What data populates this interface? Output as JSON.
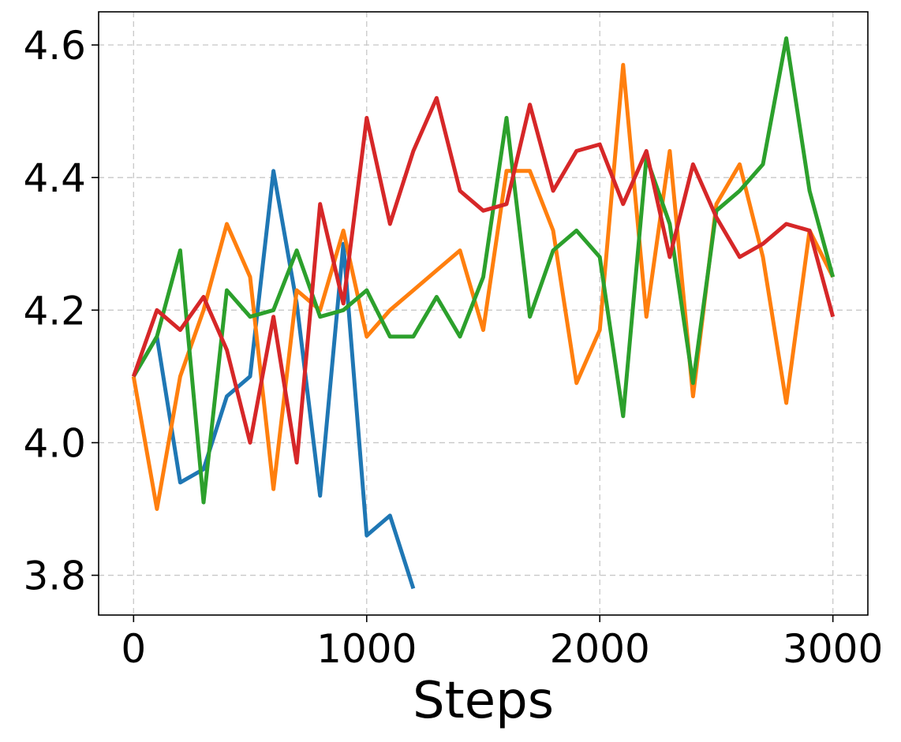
{
  "chart_data": {
    "type": "line",
    "xlabel": "Steps",
    "ylabel": "",
    "xlim": [
      -150,
      3150
    ],
    "ylim": [
      3.74,
      4.65
    ],
    "xticks": [
      0,
      1000,
      2000,
      3000
    ],
    "xtick_labels": [
      "0",
      "1000",
      "2000",
      "3000"
    ],
    "yticks": [
      3.8,
      4.0,
      4.2,
      4.4,
      4.6
    ],
    "ytick_labels": [
      "3.8",
      "4.0",
      "4.2",
      "4.4",
      "4.6"
    ],
    "grid": true,
    "legend": "none",
    "series": [
      {
        "color": "#1f77b4",
        "x": [
          0,
          100,
          200,
          300,
          400,
          500,
          600,
          700,
          800,
          900,
          1000,
          1100,
          1200
        ],
        "y": [
          4.1,
          4.16,
          3.94,
          3.96,
          4.07,
          4.1,
          4.41,
          4.21,
          3.92,
          4.3,
          3.86,
          3.89,
          3.78
        ]
      },
      {
        "color": "#ff7f0e",
        "x": [
          0,
          100,
          200,
          300,
          400,
          500,
          600,
          700,
          800,
          900,
          1000,
          1100,
          1200,
          1300,
          1400,
          1500,
          1600,
          1700,
          1800,
          1900,
          2000,
          2100,
          2200,
          2300,
          2400,
          2500,
          2600,
          2700,
          2800,
          2900,
          3000
        ],
        "y": [
          4.1,
          3.9,
          4.1,
          4.2,
          4.33,
          4.25,
          3.93,
          4.23,
          4.2,
          4.32,
          4.16,
          4.2,
          4.23,
          4.26,
          4.29,
          4.17,
          4.41,
          4.41,
          4.32,
          4.09,
          4.17,
          4.57,
          4.19,
          4.44,
          4.07,
          4.36,
          4.42,
          4.28,
          4.06,
          4.32,
          4.25
        ]
      },
      {
        "color": "#2ca02c",
        "x": [
          0,
          100,
          200,
          300,
          400,
          500,
          600,
          700,
          800,
          900,
          1000,
          1100,
          1200,
          1300,
          1400,
          1500,
          1600,
          1700,
          1800,
          1900,
          2000,
          2100,
          2200,
          2300,
          2400,
          2500,
          2600,
          2700,
          2800,
          2900,
          3000
        ],
        "y": [
          4.1,
          4.16,
          4.29,
          3.91,
          4.23,
          4.19,
          4.2,
          4.29,
          4.19,
          4.2,
          4.23,
          4.16,
          4.16,
          4.22,
          4.16,
          4.25,
          4.49,
          4.19,
          4.29,
          4.32,
          4.28,
          4.04,
          4.43,
          4.33,
          4.09,
          4.35,
          4.38,
          4.42,
          4.61,
          4.38,
          4.25
        ]
      },
      {
        "color": "#d62728",
        "x": [
          0,
          100,
          200,
          300,
          400,
          500,
          600,
          700,
          800,
          900,
          1000,
          1100,
          1200,
          1300,
          1400,
          1500,
          1600,
          1700,
          1800,
          1900,
          2000,
          2100,
          2200,
          2300,
          2400,
          2500,
          2600,
          2700,
          2800,
          2900,
          3000
        ],
        "y": [
          4.1,
          4.2,
          4.17,
          4.22,
          4.14,
          4.0,
          4.19,
          3.97,
          4.36,
          4.21,
          4.49,
          4.33,
          4.44,
          4.52,
          4.38,
          4.35,
          4.36,
          4.51,
          4.38,
          4.44,
          4.45,
          4.36,
          4.44,
          4.28,
          4.42,
          4.34,
          4.28,
          4.3,
          4.33,
          4.32,
          4.19
        ]
      }
    ]
  }
}
